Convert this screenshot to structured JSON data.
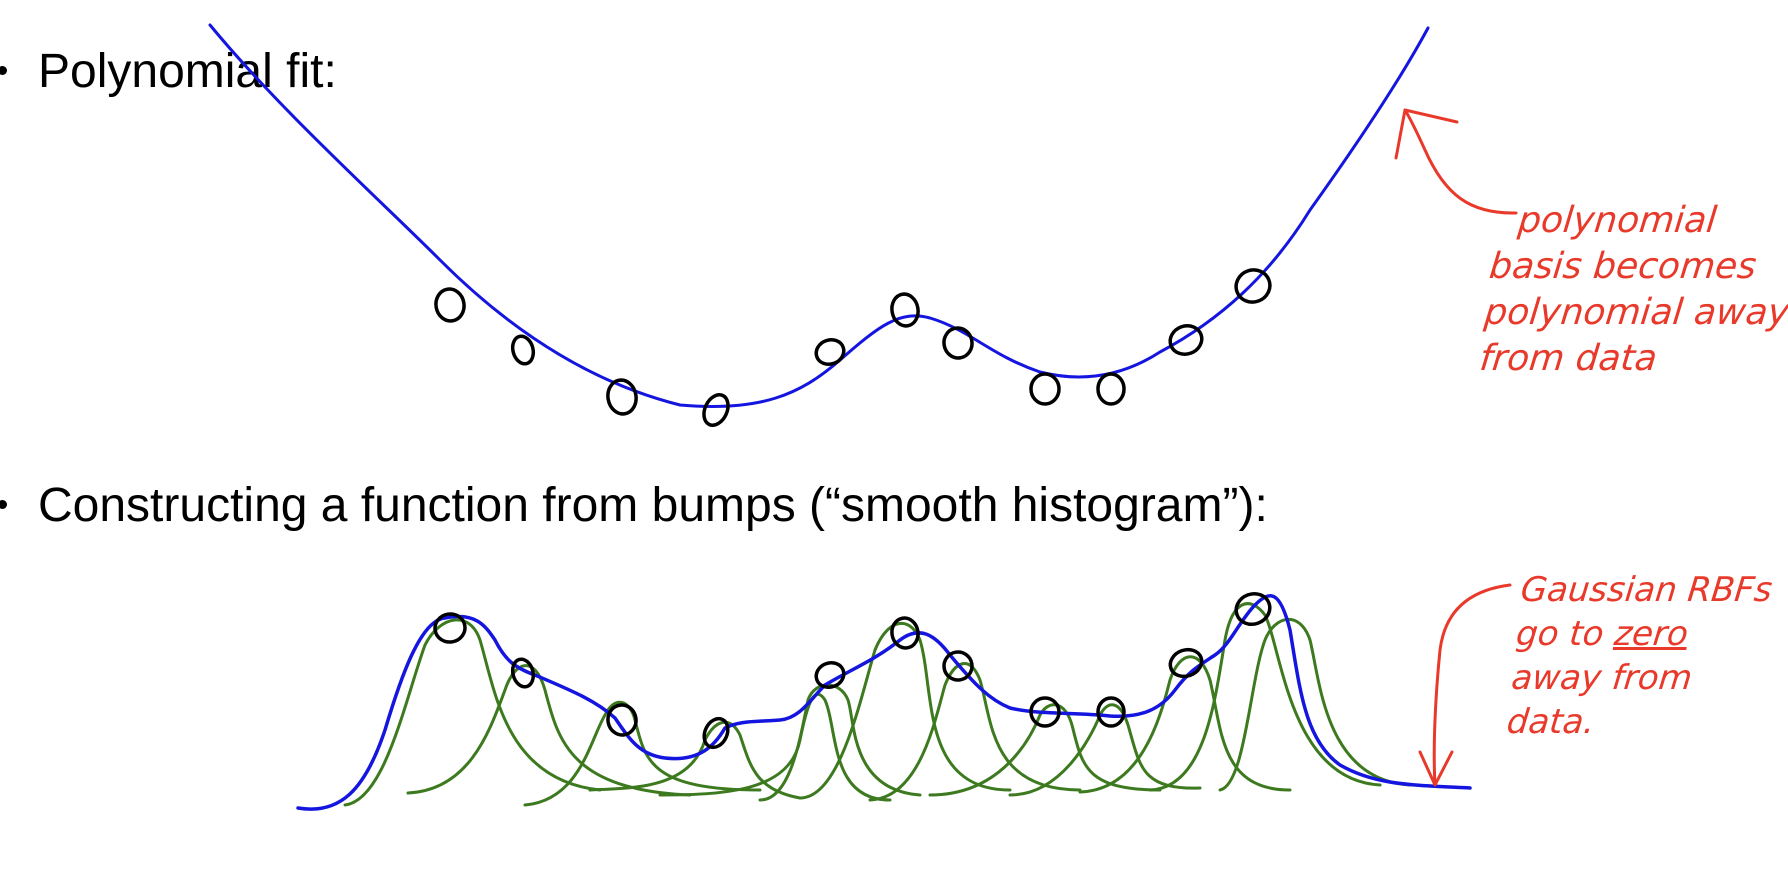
{
  "bullets": {
    "polynomial": "Polynomial fit:",
    "bumps": "Constructing a function from bumps (“smooth histogram”):"
  },
  "annotations": {
    "polynomial_note": {
      "line1": "polynomial",
      "line2": "basis becomes",
      "line3": "polynomial away",
      "line4": "from data"
    },
    "rbf_note": {
      "line1": "Gaussian RBFs",
      "line2_pre": "go to ",
      "line2_underlined": "zero",
      "line3": "away from",
      "line4": "data."
    }
  },
  "colors": {
    "fit_curve": "#1515e0",
    "basis_bumps": "#3d7a1f",
    "annotation": "#e8392a",
    "data_points": "#000000"
  },
  "icons": {
    "data_point": "hand-drawn-circle",
    "arrow": "curved-arrow"
  }
}
